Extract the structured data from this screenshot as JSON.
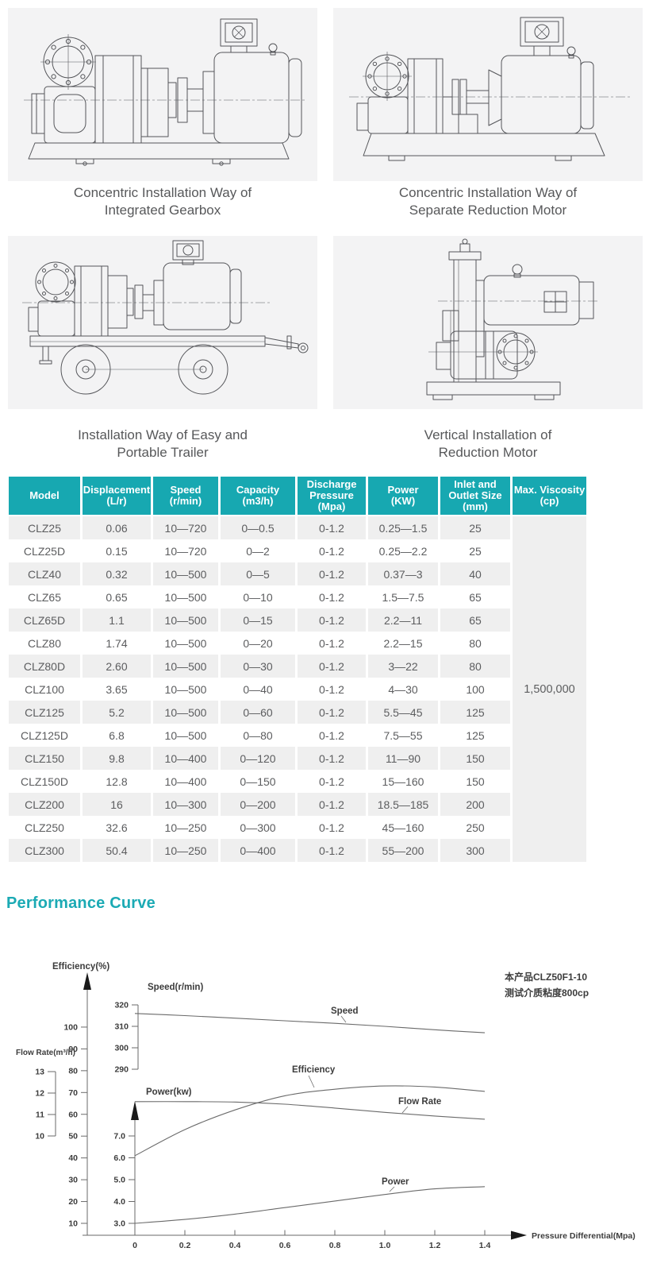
{
  "drawings": [
    {
      "caption_line1": "Concentric Installation Way of",
      "caption_line2": "Integrated Gearbox"
    },
    {
      "caption_line1": "Concentric Installation Way of",
      "caption_line2": "Separate Reduction Motor"
    },
    {
      "caption_line1": "Installation Way of Easy and",
      "caption_line2": "Portable Trailer"
    },
    {
      "caption_line1": "Vertical Installation of",
      "caption_line2": "Reduction Motor"
    }
  ],
  "table": {
    "headers": [
      [
        "Model"
      ],
      [
        "Displacement",
        "(L/r)"
      ],
      [
        "Speed",
        "(r/min)"
      ],
      [
        "Capacity",
        "(m3/h)"
      ],
      [
        "Discharge",
        "Pressure",
        "(Mpa)"
      ],
      [
        "Power",
        "(KW)"
      ],
      [
        "Inlet and",
        "Outlet Size",
        "(mm)"
      ],
      [
        "Max. Viscosity",
        "(cp)"
      ]
    ],
    "max_viscosity": "1,500,000",
    "rows": [
      [
        "CLZ25",
        "0.06",
        "10—720",
        "0—0.5",
        "0-1.2",
        "0.25—1.5",
        "25"
      ],
      [
        "CLZ25D",
        "0.15",
        "10—720",
        "0—2",
        "0-1.2",
        "0.25—2.2",
        "25"
      ],
      [
        "CLZ40",
        "0.32",
        "10—500",
        "0—5",
        "0-1.2",
        "0.37—3",
        "40"
      ],
      [
        "CLZ65",
        "0.65",
        "10—500",
        "0—10",
        "0-1.2",
        "1.5—7.5",
        "65"
      ],
      [
        "CLZ65D",
        "1.1",
        "10—500",
        "0—15",
        "0-1.2",
        "2.2—11",
        "65"
      ],
      [
        "CLZ80",
        "1.74",
        "10—500",
        "0—20",
        "0-1.2",
        "2.2—15",
        "80"
      ],
      [
        "CLZ80D",
        "2.60",
        "10—500",
        "0—30",
        "0-1.2",
        "3—22",
        "80"
      ],
      [
        "CLZ100",
        "3.65",
        "10—500",
        "0—40",
        "0-1.2",
        "4—30",
        "100"
      ],
      [
        "CLZ125",
        "5.2",
        "10—500",
        "0—60",
        "0-1.2",
        "5.5—45",
        "125"
      ],
      [
        "CLZ125D",
        "6.8",
        "10—500",
        "0—80",
        "0-1.2",
        "7.5—55",
        "125"
      ],
      [
        "CLZ150",
        "9.8",
        "10—400",
        "0—120",
        "0-1.2",
        "11—90",
        "150"
      ],
      [
        "CLZ150D",
        "12.8",
        "10—400",
        "0—150",
        "0-1.2",
        "15—160",
        "150"
      ],
      [
        "CLZ200",
        "16",
        "10—300",
        "0—200",
        "0-1.2",
        "18.5—185",
        "200"
      ],
      [
        "CLZ250",
        "32.6",
        "10—250",
        "0—300",
        "0-1.2",
        "45—160",
        "250"
      ],
      [
        "CLZ300",
        "50.4",
        "10—250",
        "0—400",
        "0-1.2",
        "55—200",
        "300"
      ]
    ]
  },
  "section_title": "Performance Curve",
  "colors": {
    "accent": "#17a8b1",
    "row_stripe": "#efefef",
    "chart_line": "#6a6a6a",
    "chart_text": "#3c3c3c"
  },
  "chart_data": {
    "type": "line",
    "x": [
      0,
      0.2,
      0.4,
      0.6,
      0.8,
      1.0,
      1.2,
      1.4
    ],
    "x_tick_labels": [
      "0",
      "0.2",
      "0.4",
      "0.6",
      "0.8",
      "1.0",
      "1.2",
      "1.4"
    ],
    "xlabel": "Pressure Differential(Mpa)",
    "annotations": [
      "本产品CLZ50F1-10",
      "测试介质粘度800cp"
    ],
    "series": [
      {
        "name": "Speed",
        "scale": "speed",
        "values": [
          316,
          315,
          313.8,
          312.6,
          311.4,
          310,
          308.4,
          307
        ]
      },
      {
        "name": "Efficiency",
        "scale": "efficiency",
        "values": [
          41,
          53,
          62,
          68.5,
          71.5,
          73,
          72.5,
          70.5
        ]
      },
      {
        "name": "Flow Rate",
        "scale": "flow",
        "values": [
          11.6,
          11.6,
          11.58,
          11.48,
          11.3,
          11.1,
          10.93,
          10.78
        ]
      },
      {
        "name": "Power",
        "scale": "power",
        "values": [
          3.0,
          3.18,
          3.42,
          3.72,
          4.02,
          4.32,
          4.58,
          4.68
        ]
      }
    ],
    "axes": {
      "efficiency": {
        "label": "Efficiency(%)",
        "ticks": [
          "10",
          "20",
          "30",
          "40",
          "50",
          "60",
          "70",
          "80",
          "90",
          "100"
        ],
        "range": [
          10,
          100
        ]
      },
      "speed": {
        "label": "Speed(r/min)",
        "ticks": [
          "290",
          "300",
          "310",
          "320"
        ],
        "range": [
          290,
          320
        ]
      },
      "flow": {
        "label": "Flow Rate(m³/h)",
        "ticks": [
          "10",
          "11",
          "12",
          "13"
        ],
        "range": [
          10,
          13
        ]
      },
      "power": {
        "label": "Power(kw)",
        "ticks": [
          "3.0",
          "4.0",
          "5.0",
          "6.0",
          "7.0"
        ],
        "range": [
          3,
          7
        ]
      }
    },
    "legend_position": "on-curve-labels",
    "grid": false
  }
}
